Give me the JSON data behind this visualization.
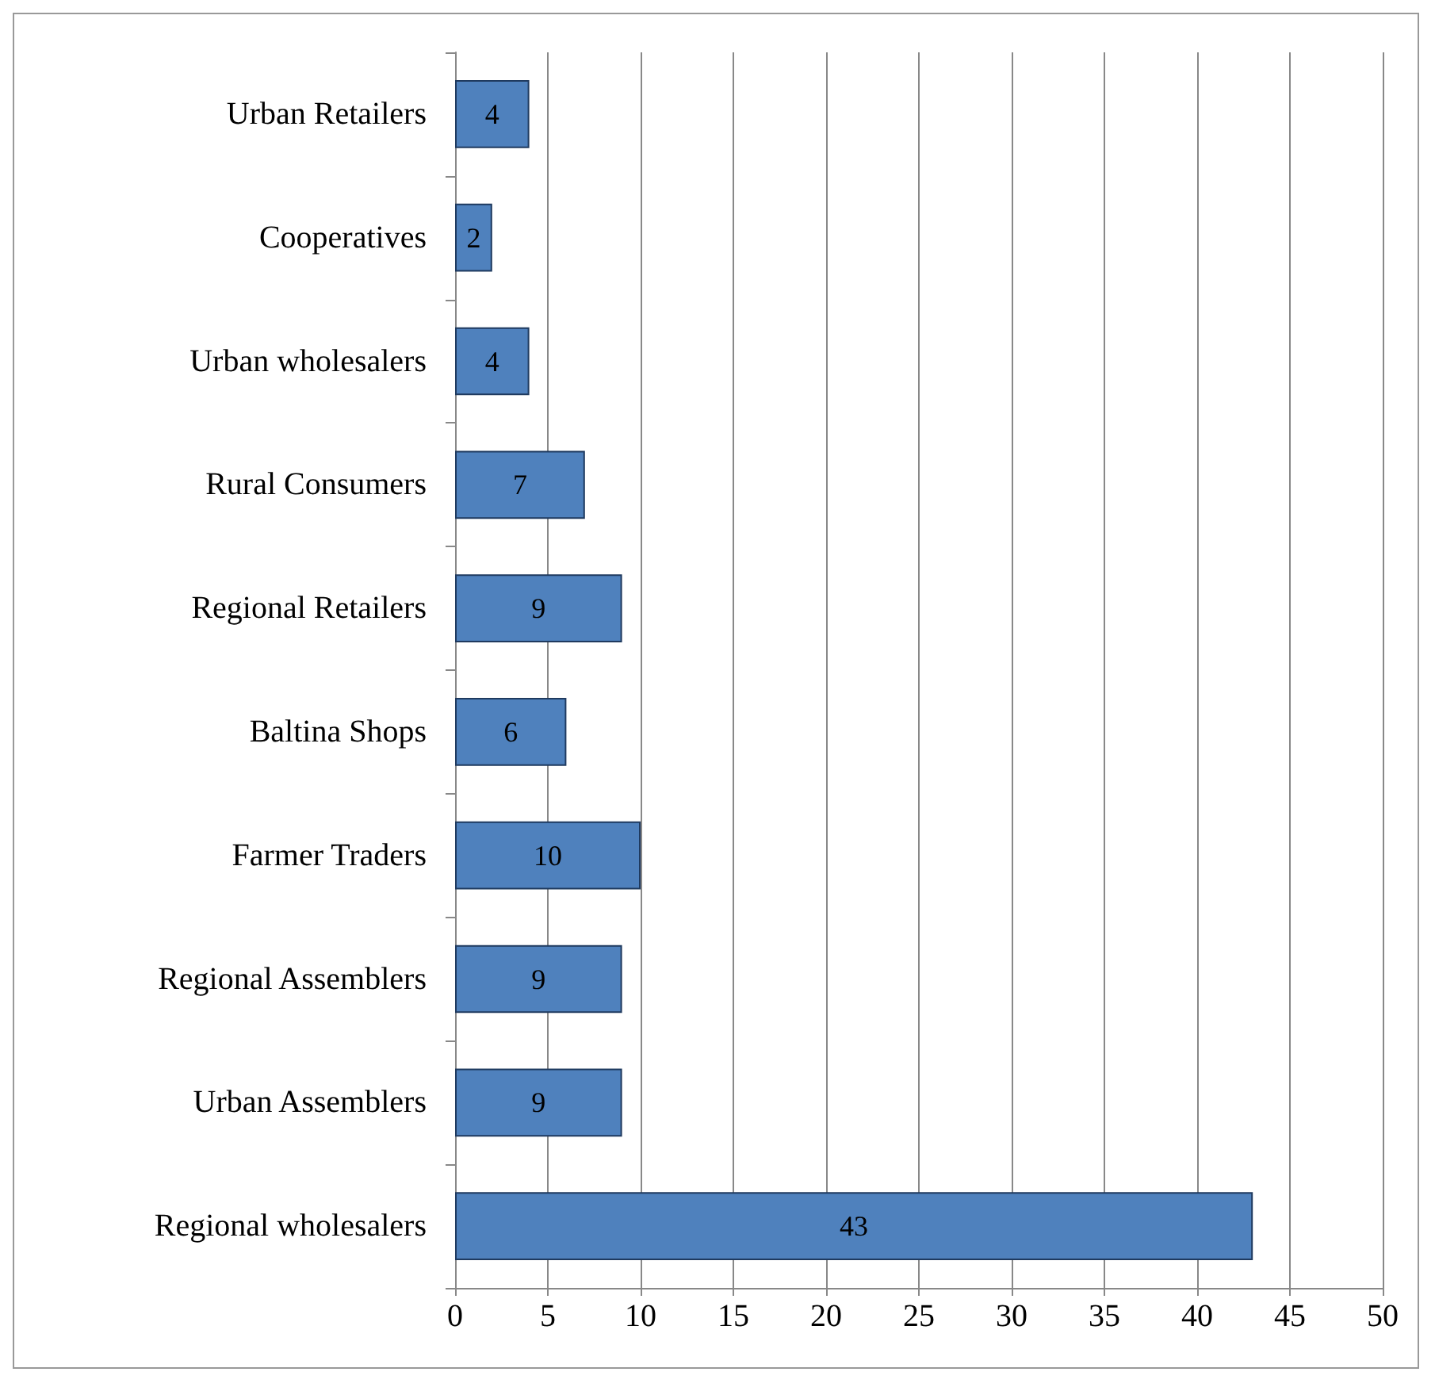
{
  "chart_data": {
    "type": "bar",
    "orientation": "horizontal",
    "categories": [
      "Urban Retailers",
      "Cooperatives",
      "Urban wholesalers",
      "Rural Consumers",
      "Regional Retailers",
      "Baltina Shops",
      "Farmer Traders",
      "Regional Assemblers",
      "Urban Assemblers",
      "Regional wholesalers"
    ],
    "values": [
      4,
      2,
      4,
      7,
      9,
      6,
      10,
      9,
      9,
      43
    ],
    "color": "#4f81bd",
    "xlim": [
      0,
      50
    ],
    "xticks": [
      0,
      5,
      10,
      15,
      20,
      25,
      30,
      35,
      40,
      45,
      50
    ],
    "grid": "x",
    "data_labels": true
  }
}
